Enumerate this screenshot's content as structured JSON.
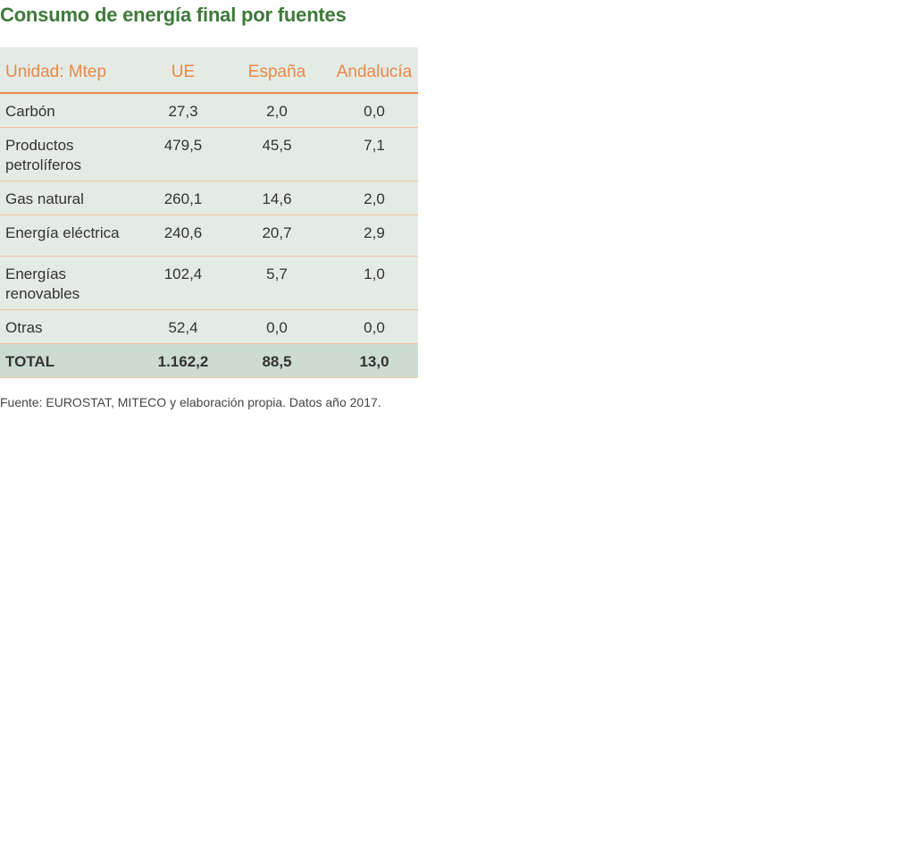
{
  "chart_data": {
    "type": "table",
    "title": "Consumo de energía final por fuentes",
    "unit_label": "Unidad: Mtep",
    "columns": [
      "UE",
      "España",
      "Andalucía"
    ],
    "rows": [
      {
        "label": "Carbón",
        "values": [
          "27,3",
          "2,0",
          "0,0"
        ]
      },
      {
        "label": "Productos petrolíferos",
        "values": [
          "479,5",
          "45,5",
          "7,1"
        ]
      },
      {
        "label": "Gas natural",
        "values": [
          "260,1",
          "14,6",
          "2,0"
        ]
      },
      {
        "label": "Energía eléctrica",
        "values": [
          "240,6",
          "20,7",
          "2,9"
        ]
      },
      {
        "label": "Energías renovables",
        "values": [
          "102,4",
          "5,7",
          "1,0"
        ]
      },
      {
        "label": "Otras",
        "values": [
          "52,4",
          "0,0",
          "0,0"
        ]
      }
    ],
    "total": {
      "label": "TOTAL",
      "values": [
        "1.162,2",
        "88,5",
        "13,0"
      ]
    },
    "source": "Fuente: EUROSTAT, MITECO y elaboración propia. Datos año 2017."
  },
  "colors": {
    "title": "#3e7a3a",
    "header_text": "#e8894a",
    "table_bg": "#e4ebe4",
    "total_bg": "#cddcd0",
    "row_border": "#efc39f"
  }
}
